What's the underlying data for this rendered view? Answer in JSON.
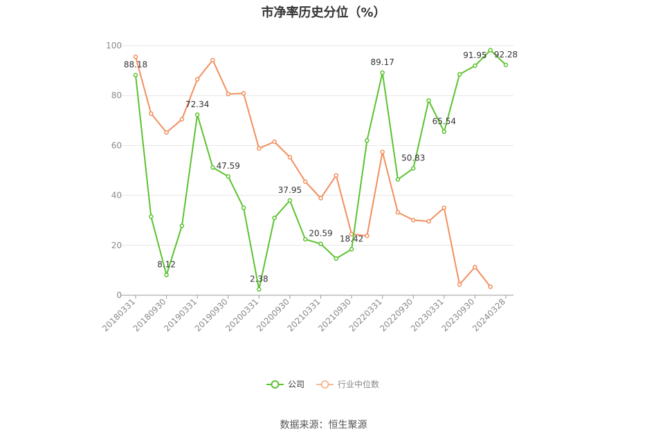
{
  "chart_data": {
    "type": "line",
    "title": "市净率历史分位（%）",
    "source": "数据来源：恒生聚源",
    "ylim": [
      0,
      100
    ],
    "yticks": [
      0,
      20,
      40,
      60,
      80,
      100
    ],
    "grid": true,
    "legend_position": "bottom",
    "x": [
      "20180331",
      "20180630",
      "20180930",
      "20181231",
      "20190331",
      "20190630",
      "20190930",
      "20191231",
      "20200331",
      "20200630",
      "20200930",
      "20201231",
      "20210331",
      "20210630",
      "20210930",
      "20211231",
      "20220331",
      "20220630",
      "20220930",
      "20221231",
      "20230331",
      "20230630",
      "20230930",
      "20231231",
      "20240328"
    ],
    "xtick_labels": [
      "20180331",
      "20180930",
      "20190331",
      "20190930",
      "20200331",
      "20200930",
      "20210331",
      "20210930",
      "20220331",
      "20220930",
      "20230331",
      "20230930",
      "20240328"
    ],
    "series": [
      {
        "name": "公司",
        "color": "#5ac22e",
        "values": [
          88.18,
          31.5,
          8.12,
          27.8,
          72.34,
          51.2,
          47.59,
          35.0,
          2.38,
          31.0,
          37.95,
          22.4,
          20.59,
          14.7,
          18.42,
          62.0,
          89.17,
          46.4,
          50.83,
          78.0,
          65.54,
          88.5,
          91.95,
          98.2,
          92.28
        ],
        "labels": {
          "0": "88.18",
          "2": "8.12",
          "4": "72.34",
          "6": "47.59",
          "8": "2.38",
          "10": "37.95",
          "12": "20.59",
          "14": "18.42",
          "16": "89.17",
          "18": "50.83",
          "20": "65.54",
          "22": "91.95",
          "24": "92.28"
        }
      },
      {
        "name": "行业中位数",
        "color": "#f28e5c",
        "values": [
          95.5,
          72.8,
          65.2,
          70.5,
          86.5,
          94.2,
          80.6,
          80.9,
          58.8,
          61.5,
          55.3,
          45.5,
          38.9,
          48.0,
          24.5,
          23.8,
          57.4,
          33.2,
          30.1,
          29.6,
          35.0,
          4.3,
          11.3,
          3.4,
          null
        ]
      }
    ]
  }
}
